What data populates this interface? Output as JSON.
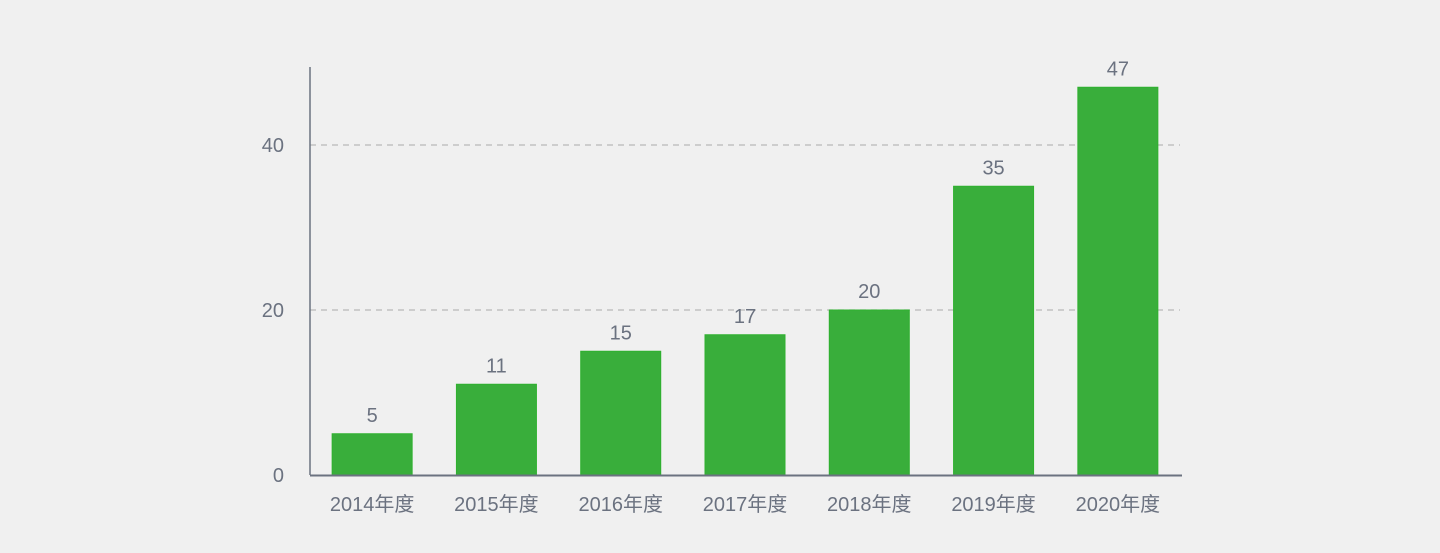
{
  "chart_data": {
    "type": "bar",
    "categories": [
      "2014年度",
      "2015年度",
      "2016年度",
      "2017年度",
      "2018年度",
      "2019年度",
      "2020年度"
    ],
    "values": [
      5,
      11,
      15,
      17,
      20,
      35,
      47
    ],
    "title": "",
    "xlabel": "",
    "ylabel": "",
    "ylim": [
      0,
      50
    ],
    "yticks": [
      0,
      20,
      40
    ],
    "grid": "horizontal dashed",
    "data_labels": true,
    "colors": {
      "bar": "#39ae3b",
      "bar_border": "#2fb12f",
      "axis": "#6b7280",
      "grid": "#b8b8b8",
      "text": "#6b7280"
    }
  }
}
